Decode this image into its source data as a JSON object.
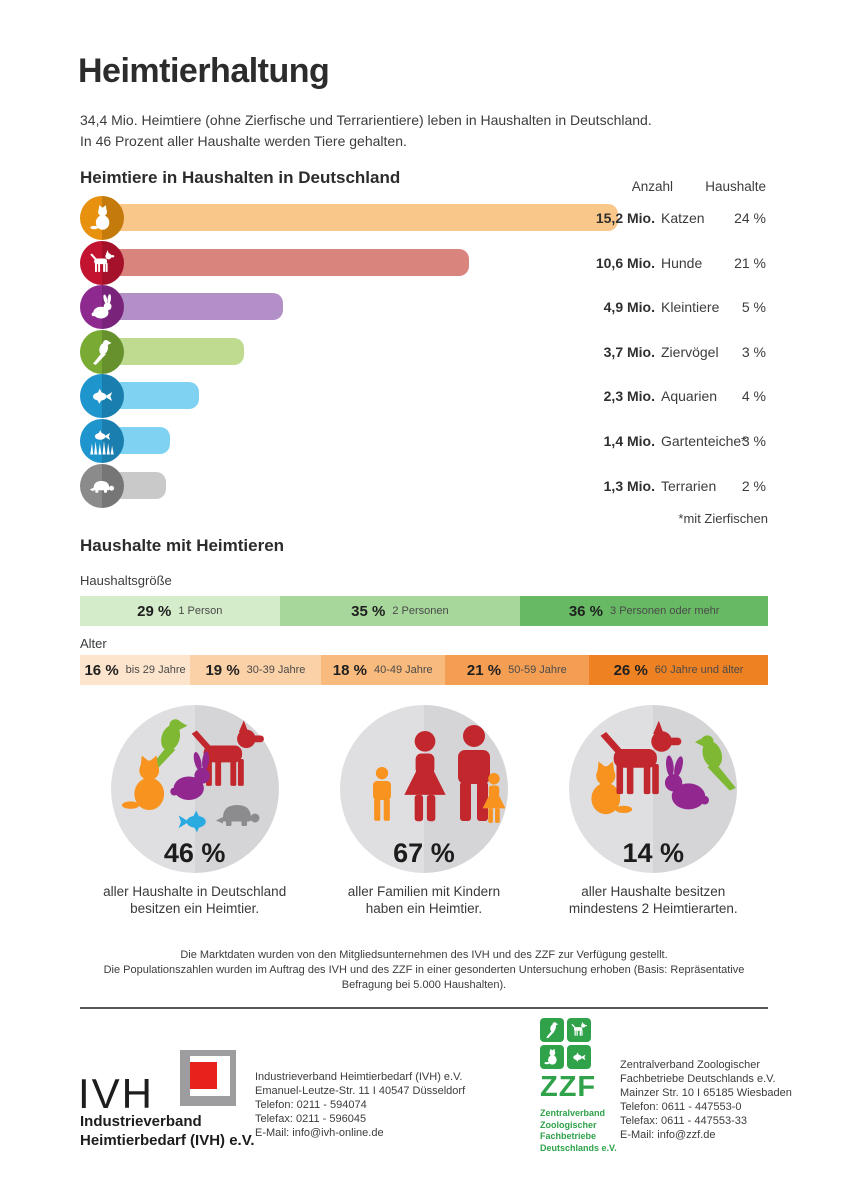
{
  "page": {
    "title": "Heimtierhaltung",
    "intro": "34,4 Mio. Heimtiere (ohne Zierfische und Terrarientiere) leben in Haushalten in Deutschland.\nIn 46 Prozent aller Haushalte werden Tiere gehalten."
  },
  "chart_data": [
    {
      "type": "bar",
      "title": "Heimtiere in Haushalten in Deutschland",
      "columns": {
        "anzahl": "Anzahl",
        "haushalte": "Haushalte"
      },
      "unit": "Mio.",
      "xlim": [
        0,
        16
      ],
      "rows": [
        {
          "animal": "Katzen",
          "icon": "cat",
          "value": 15.2,
          "value_label": "15,2 Mio.",
          "households": "24 %",
          "icon_color": "#e8910e",
          "bar_color": "#f9c789"
        },
        {
          "animal": "Hunde",
          "icon": "dog",
          "value": 10.6,
          "value_label": "10,6 Mio.",
          "households": "21 %",
          "icon_color": "#c21431",
          "bar_color": "#d9847c"
        },
        {
          "animal": "Kleintiere",
          "icon": "rabbit",
          "value": 4.9,
          "value_label": "4,9 Mio.",
          "households": "5 %",
          "icon_color": "#8e2a8f",
          "bar_color": "#b38fc7"
        },
        {
          "animal": "Ziervögel",
          "icon": "parrot",
          "value": 3.7,
          "value_label": "3,7 Mio.",
          "households": "3 %",
          "icon_color": "#79aa34",
          "bar_color": "#bedb90"
        },
        {
          "animal": "Aquarien",
          "icon": "fish",
          "value": 2.3,
          "value_label": "2,3 Mio.",
          "households": "4 %",
          "icon_color": "#1f95cd",
          "bar_color": "#7fd2f2"
        },
        {
          "animal": "Gartenteiche*",
          "icon": "pond",
          "value": 1.4,
          "value_label": "1,4 Mio.",
          "households": "3 %",
          "icon_color": "#1f95cd",
          "bar_color": "#7fd2f2"
        },
        {
          "animal": "Terrarien",
          "icon": "turtle",
          "value": 1.3,
          "value_label": "1,3 Mio.",
          "households": "2 %",
          "icon_color": "#8b8b8b",
          "bar_color": "#c9c9c9"
        }
      ],
      "footnote": "*mit Zierfischen"
    },
    {
      "type": "stacked-bar",
      "title": "Haushalte mit Heimtieren",
      "bars": [
        {
          "label": "Haushaltsgröße",
          "segments": [
            {
              "pct": 29,
              "pct_label": "29 %",
              "label": "1 Person",
              "color": "#d5ecca"
            },
            {
              "pct": 35,
              "pct_label": "35 %",
              "label": "2 Personen",
              "color": "#a7d79b"
            },
            {
              "pct": 36,
              "pct_label": "36 %",
              "label": "3 Personen oder mehr",
              "color": "#67b963"
            }
          ]
        },
        {
          "label": "Alter",
          "segments": [
            {
              "pct": 16,
              "pct_label": "16 %",
              "label": "bis 29 Jahre",
              "color": "#fce4cd"
            },
            {
              "pct": 19,
              "pct_label": "19 %",
              "label": "30-39 Jahre",
              "color": "#fbd2a7"
            },
            {
              "pct": 18,
              "pct_label": "18 %",
              "label": "40-49 Jahre",
              "color": "#f9ba7d"
            },
            {
              "pct": 21,
              "pct_label": "21 %",
              "label": "50-59 Jahre",
              "color": "#f49e54"
            },
            {
              "pct": 26,
              "pct_label": "26 %",
              "label": "60 Jahre und älter",
              "color": "#ee8122"
            }
          ]
        }
      ]
    }
  ],
  "stats": [
    {
      "id": "pets",
      "pct": "46 %",
      "caption": "aller Haushalte in Deutschland\nbesitzen ein Heimtier."
    },
    {
      "id": "family",
      "pct": "67 %",
      "caption": "aller Familien mit Kindern\nhaben ein Heimtier."
    },
    {
      "id": "multi",
      "pct": "14 %",
      "caption": "aller Haushalte besitzen\nmindestens 2 Heimtierarten."
    }
  ],
  "source_note": "Die Marktdaten wurden von den Mitgliedsunternehmen des IVH und des ZZF zur Verfügung gestellt.\nDie Populationszahlen wurden im Auftrag des IVH und des ZZF in einer gesonderten Untersuchung erhoben (Basis: Repräsentative Befragung bei 5.000 Haushalten).",
  "footer": {
    "ivh": {
      "logo_text": "IVH",
      "logo_sub": "Industrieverband\nHeimtierbedarf (IVH) e.V.",
      "address": [
        "Industrieverband Heimtierbedarf (IVH) e.V.",
        "Emanuel-Leutze-Str. 11 I 40547 Düsseldorf",
        "Telefon: 0211 - 594074",
        "Telefax: 0211 - 596045",
        "E-Mail: info@ivh-online.de"
      ]
    },
    "zzf": {
      "logo_text": "ZZF",
      "logo_sub": "Zentralverband\nZoologischer\nFachbetriebe\nDeutschlands e.V.",
      "logo_green": "#2fa24a",
      "address": [
        "Zentralverband Zoologischer",
        "Fachbetriebe Deutschlands e.V.",
        "Mainzer Str. 10 I 65185 Wiesbaden",
        "Telefon: 0611 - 447553-0",
        "Telefax: 0611 - 447553-33",
        "E-Mail: info@zzf.de"
      ]
    }
  }
}
